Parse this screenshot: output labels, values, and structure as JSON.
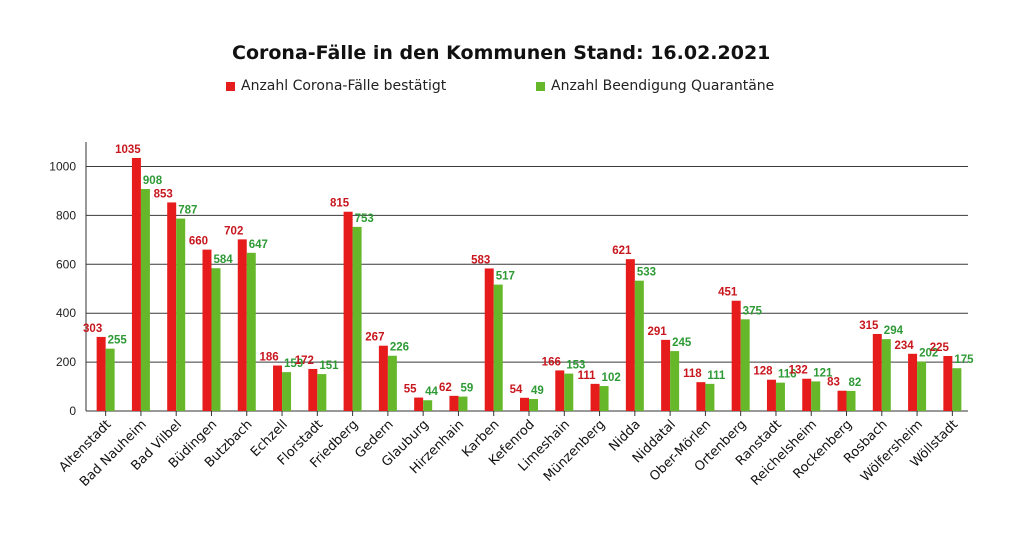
{
  "chart_data": {
    "type": "bar",
    "title": "Corona-Fälle in den Kommunen Stand: 16.02.2021",
    "xlabel": "",
    "ylabel": "",
    "ylim": [
      0,
      1100
    ],
    "yticks": [
      0,
      200,
      400,
      600,
      800,
      1000
    ],
    "grid": true,
    "legend_position": "top",
    "categories": [
      "Altenstadt",
      "Bad Nauheim",
      "Bad Vilbel",
      "Büdingen",
      "Butzbach",
      "Echzell",
      "Florstadt",
      "Friedberg",
      "Gedern",
      "Glauburg",
      "Hirzenhain",
      "Karben",
      "Kefenrod",
      "Limeshain",
      "Münzenberg",
      "Nidda",
      "Niddatal",
      "Ober-Mörlen",
      "Ortenberg",
      "Ranstadt",
      "Reichelsheim",
      "Rockenberg",
      "Rosbach",
      "Wölfersheim",
      "Wöllstadt"
    ],
    "series": [
      {
        "name": "Anzahl Corona-Fälle bestätigt",
        "color": "#e61c1c",
        "label_color": "#c8161e",
        "values": [
          303,
          1035,
          853,
          660,
          702,
          186,
          172,
          815,
          267,
          55,
          62,
          583,
          54,
          166,
          111,
          621,
          291,
          118,
          451,
          128,
          132,
          83,
          315,
          234,
          225
        ]
      },
      {
        "name": "Anzahl Beendigung Quarantäne",
        "color": "#66b82a",
        "label_color": "#2e9a36",
        "values": [
          255,
          908,
          787,
          584,
          647,
          159,
          151,
          753,
          226,
          44,
          59,
          517,
          49,
          153,
          102,
          533,
          245,
          111,
          375,
          116,
          121,
          82,
          294,
          202,
          175
        ]
      }
    ]
  }
}
